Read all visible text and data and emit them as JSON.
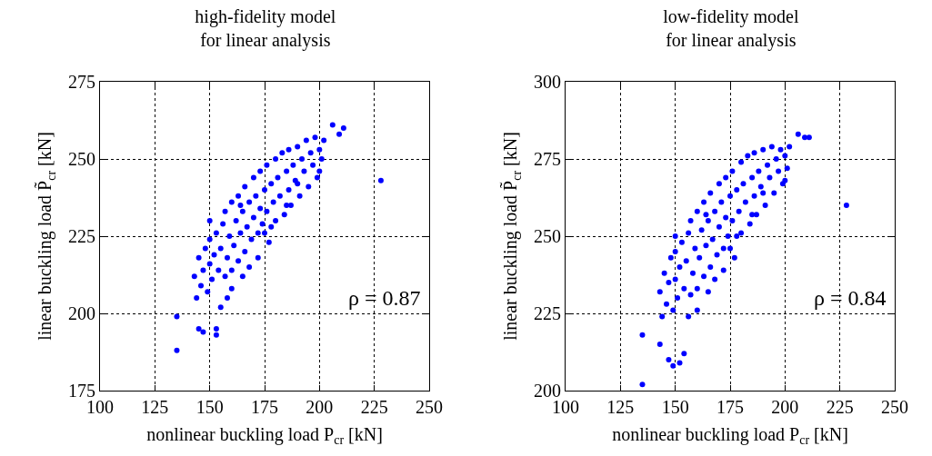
{
  "chart_data": [
    {
      "type": "scatter",
      "title": "high-fidelity model\nfor linear analysis",
      "xlabel": "nonlinear buckling load P$_{cr}$ [kN]",
      "ylabel": "linear buckling load P̃$_{cr}$ [kN]",
      "annotations": [
        "ρ = 0.87"
      ],
      "marker": "circle",
      "grid": true,
      "xlim": [
        100,
        250
      ],
      "xticks": [
        100,
        125,
        150,
        175,
        200,
        225,
        250
      ],
      "ylim": [
        175,
        275
      ],
      "yticks": [
        175,
        200,
        225,
        250,
        275
      ],
      "series": [
        {
          "color": "#0000ff",
          "x": [
            135,
            135,
            145,
            147,
            153,
            153,
            155,
            228,
            206,
            211,
            209,
            143,
            144,
            145,
            146,
            147,
            148,
            149,
            150,
            150,
            151,
            152,
            153,
            154,
            155,
            156,
            157,
            157,
            158,
            159,
            160,
            160,
            161,
            162,
            163,
            163,
            164,
            165,
            166,
            166,
            167,
            168,
            169,
            170,
            170,
            171,
            172,
            173,
            173,
            174,
            175,
            176,
            176,
            177,
            178,
            179,
            180,
            180,
            181,
            182,
            183,
            184,
            185,
            186,
            186,
            187,
            188,
            189,
            190,
            191,
            192,
            193,
            194,
            195,
            196,
            197,
            198,
            199,
            200,
            201,
            202,
            175,
            165,
            160,
            168,
            178,
            172,
            185,
            190,
            158,
            164,
            150,
            200
          ],
          "values": [
            199,
            188,
            195,
            194,
            195,
            193,
            202,
            243,
            261,
            260,
            258,
            212,
            205,
            218,
            209,
            214,
            221,
            207,
            216,
            224,
            211,
            219,
            226,
            214,
            221,
            229,
            212,
            233,
            218,
            225,
            236,
            214,
            222,
            230,
            217,
            238,
            226,
            233,
            220,
            241,
            228,
            236,
            224,
            244,
            231,
            238,
            226,
            234,
            246,
            229,
            240,
            233,
            248,
            223,
            242,
            236,
            250,
            230,
            244,
            238,
            252,
            232,
            246,
            240,
            253,
            235,
            248,
            243,
            254,
            238,
            250,
            246,
            256,
            241,
            252,
            248,
            257,
            244,
            253,
            250,
            256,
            226,
            212,
            208,
            215,
            228,
            218,
            235,
            242,
            205,
            235,
            230,
            246
          ]
        }
      ]
    },
    {
      "type": "scatter",
      "title": "low-fidelity model\nfor linear analysis",
      "xlabel": "nonlinear buckling load P$_{cr}$ [kN]",
      "ylabel": "linear buckling load P̃$_{cr}$ [kN]",
      "annotations": [
        "ρ = 0.84"
      ],
      "marker": "circle",
      "grid": true,
      "xlim": [
        100,
        250
      ],
      "xticks": [
        100,
        125,
        150,
        175,
        200,
        225,
        250
      ],
      "ylim": [
        200,
        300
      ],
      "yticks": [
        200,
        225,
        250,
        275,
        300
      ],
      "series": [
        {
          "color": "#0000ff",
          "x": [
            135,
            135,
            143,
            147,
            149,
            152,
            154,
            228,
            206,
            209,
            211,
            143,
            144,
            145,
            146,
            147,
            148,
            149,
            150,
            150,
            151,
            152,
            153,
            154,
            155,
            156,
            157,
            157,
            158,
            159,
            160,
            160,
            161,
            162,
            163,
            163,
            164,
            165,
            166,
            166,
            167,
            168,
            169,
            170,
            170,
            171,
            172,
            173,
            173,
            174,
            175,
            176,
            176,
            177,
            178,
            179,
            180,
            180,
            181,
            182,
            183,
            184,
            185,
            186,
            186,
            187,
            188,
            189,
            190,
            191,
            192,
            193,
            194,
            195,
            196,
            197,
            198,
            199,
            200,
            201,
            202,
            175,
            165,
            160,
            168,
            178,
            172,
            185,
            190,
            156,
            164,
            150,
            200
          ],
          "values": [
            218,
            202,
            215,
            210,
            208,
            209,
            212,
            260,
            283,
            282,
            282,
            232,
            224,
            238,
            228,
            235,
            243,
            226,
            236,
            245,
            230,
            240,
            248,
            233,
            242,
            251,
            231,
            255,
            238,
            246,
            258,
            233,
            243,
            252,
            237,
            261,
            247,
            255,
            240,
            264,
            249,
            258,
            244,
            267,
            253,
            261,
            246,
            256,
            269,
            250,
            263,
            255,
            271,
            243,
            265,
            258,
            274,
            251,
            267,
            261,
            276,
            254,
            269,
            263,
            277,
            257,
            271,
            266,
            278,
            260,
            273,
            269,
            279,
            264,
            275,
            271,
            278,
            267,
            276,
            272,
            279,
            246,
            232,
            226,
            236,
            250,
            239,
            257,
            264,
            224,
            257,
            250,
            268
          ]
        }
      ]
    }
  ]
}
